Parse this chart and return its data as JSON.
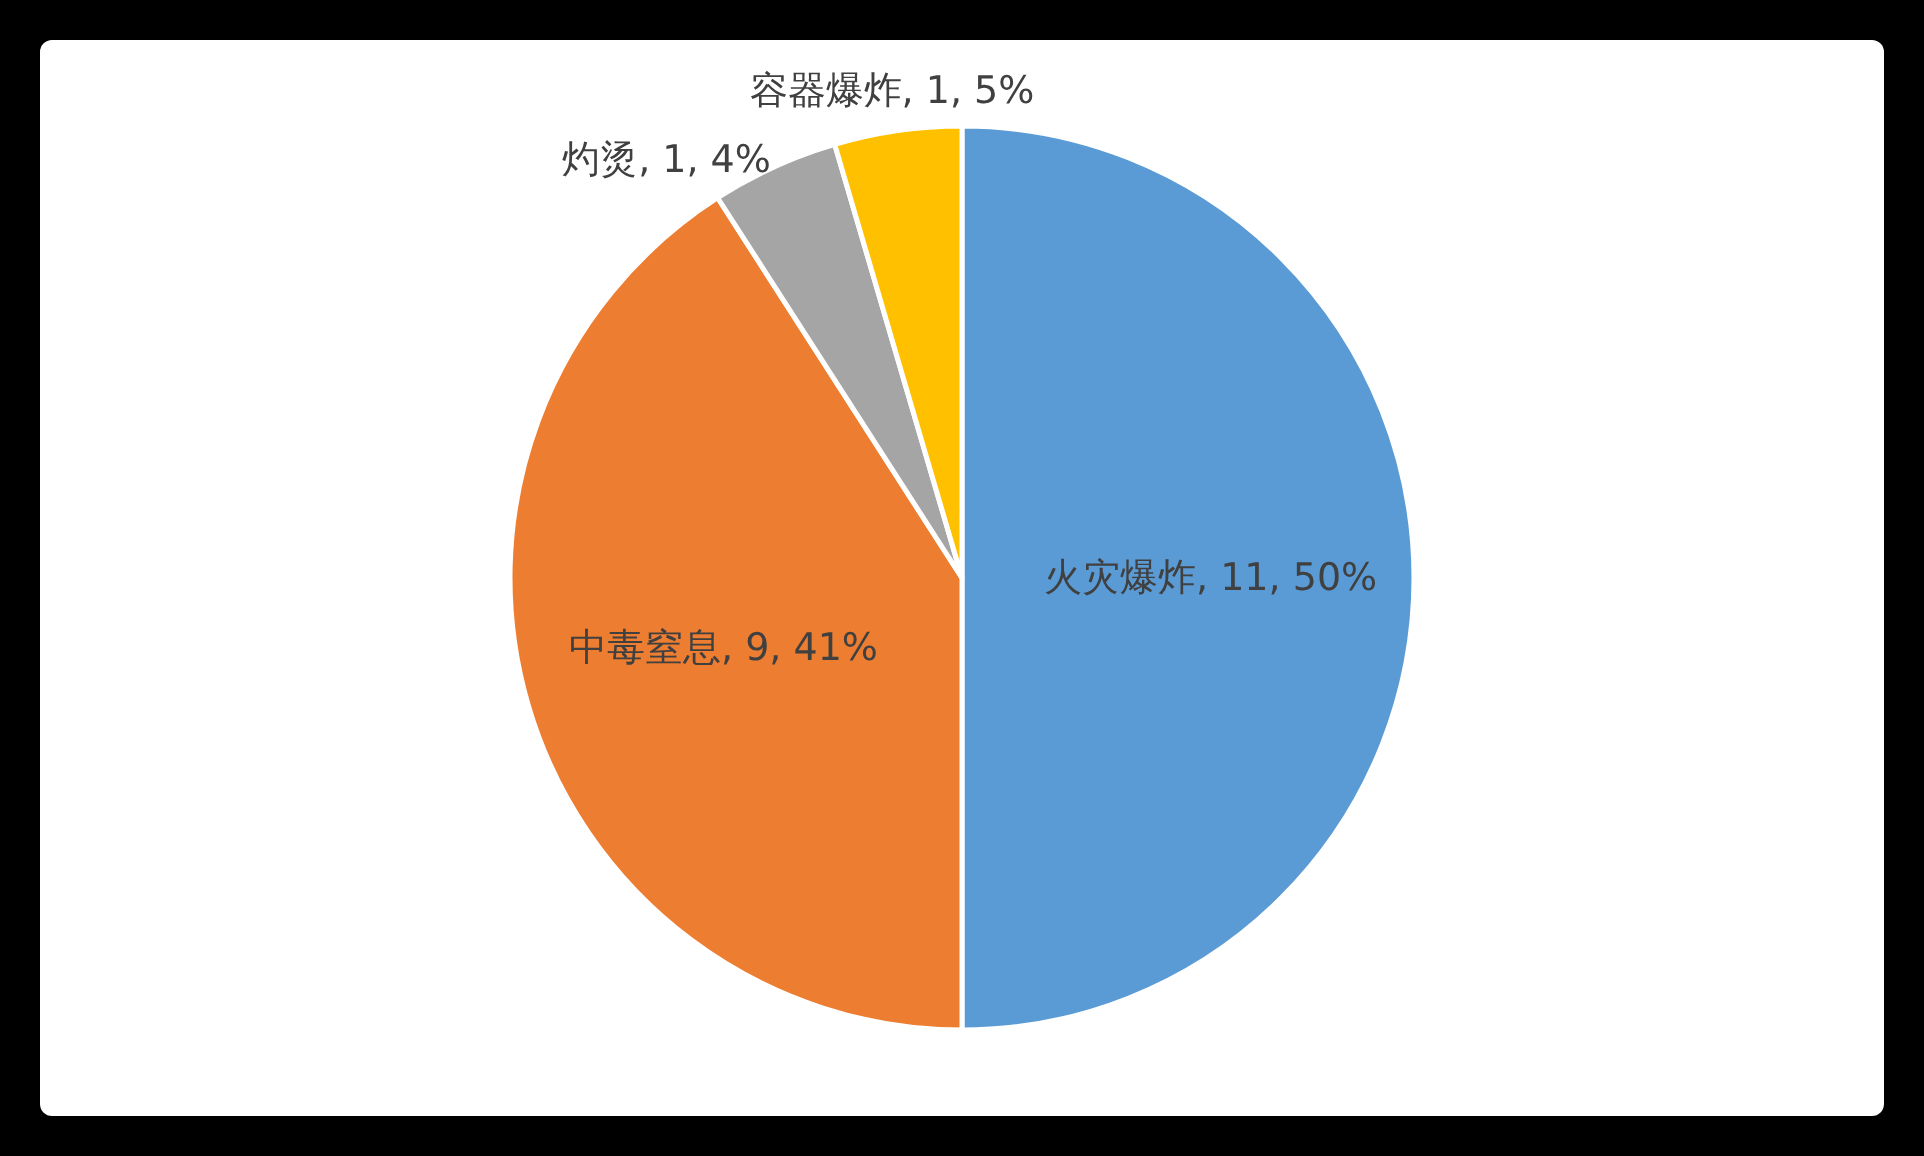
{
  "chart_data": {
    "type": "pie",
    "categories": [
      "火灾爆炸",
      "中毒窒息",
      "灼烫",
      "容器爆炸"
    ],
    "values": [
      11,
      9,
      1,
      1
    ],
    "colors": [
      "#5b9bd5",
      "#ed7d31",
      "#a5a5a5",
      "#ffc000"
    ],
    "value_labels": [
      ", 11, 50%",
      ", 9, 41%",
      ", 1, 4%",
      ", 1, 5%"
    ]
  }
}
